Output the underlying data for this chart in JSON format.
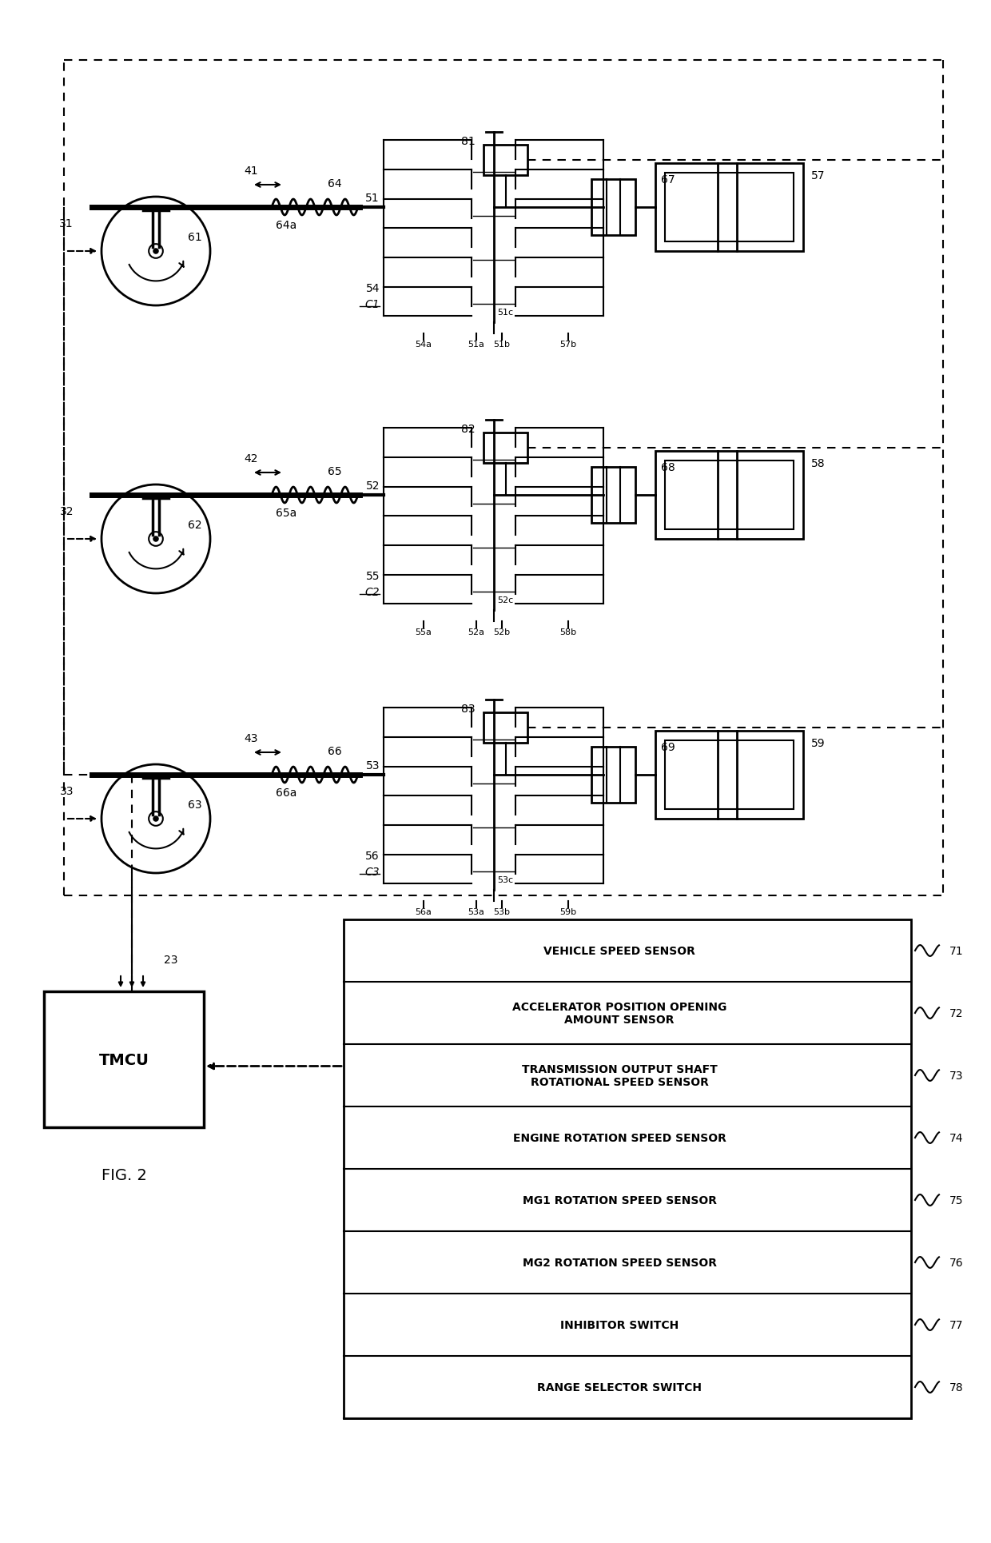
{
  "bg_color": "#ffffff",
  "line_color": "#000000",
  "fig_label": "FIG. 2",
  "sensor_rows": [
    {
      "label": "VEHICLE SPEED SENSOR",
      "num": "71"
    },
    {
      "label": "ACCELERATOR POSITION OPENING\nAMOUNT SENSOR",
      "num": "72"
    },
    {
      "label": "TRANSMISSION OUTPUT SHAFT\nROTATIONAL SPEED SENSOR",
      "num": "73"
    },
    {
      "label": "ENGINE ROTATION SPEED SENSOR",
      "num": "74"
    },
    {
      "label": "MG1 ROTATION SPEED SENSOR",
      "num": "75"
    },
    {
      "label": "MG2 ROTATION SPEED SENSOR",
      "num": "76"
    },
    {
      "label": "INHIBITOR SWITCH",
      "num": "77"
    },
    {
      "label": "RANGE SELECTOR SWITCH",
      "num": "78"
    }
  ],
  "tmcu_label": "TMCU",
  "unit_data": [
    {
      "wheel_num": "31",
      "strut_num": "61",
      "spring_num": "64",
      "damper_num": "64a",
      "clutch_num": "54",
      "clutch_label": "C1",
      "shaft_num": "51",
      "shaft_a": "51a",
      "shaft_b": "51b",
      "shaft_c": "51c",
      "drum_a": "54a",
      "drum_b": "57b",
      "motor_num": "57",
      "actuator_num": "67",
      "solenoid_num": "81",
      "move_num": "41"
    },
    {
      "wheel_num": "32",
      "strut_num": "62",
      "spring_num": "65",
      "damper_num": "65a",
      "clutch_num": "55",
      "clutch_label": "C2",
      "shaft_num": "52",
      "shaft_a": "52a",
      "shaft_b": "52b",
      "shaft_c": "52c",
      "drum_a": "55a",
      "drum_b": "58b",
      "motor_num": "58",
      "actuator_num": "68",
      "solenoid_num": "82",
      "move_num": "42"
    },
    {
      "wheel_num": "33",
      "strut_num": "63",
      "spring_num": "66",
      "damper_num": "66a",
      "clutch_num": "56",
      "clutch_label": "C3",
      "shaft_num": "53",
      "shaft_a": "53a",
      "shaft_b": "53b",
      "shaft_c": "53c",
      "drum_a": "56a",
      "drum_b": "59b",
      "motor_num": "59",
      "actuator_num": "69",
      "solenoid_num": "83",
      "move_num": "43"
    }
  ]
}
